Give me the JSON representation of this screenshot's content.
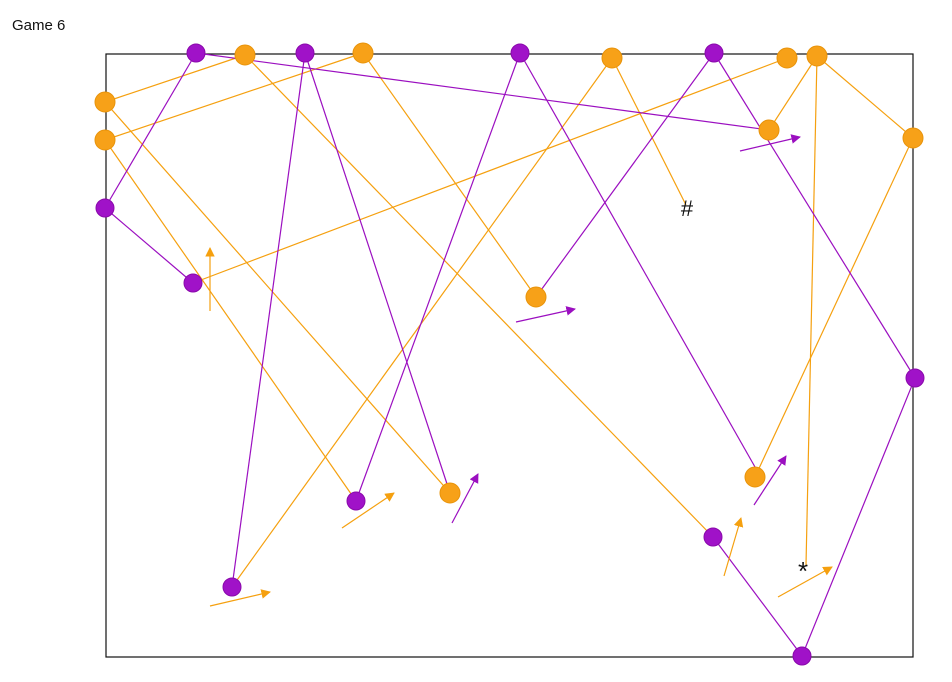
{
  "title": "Game 6",
  "markers": [
    "#",
    "*"
  ]
}
